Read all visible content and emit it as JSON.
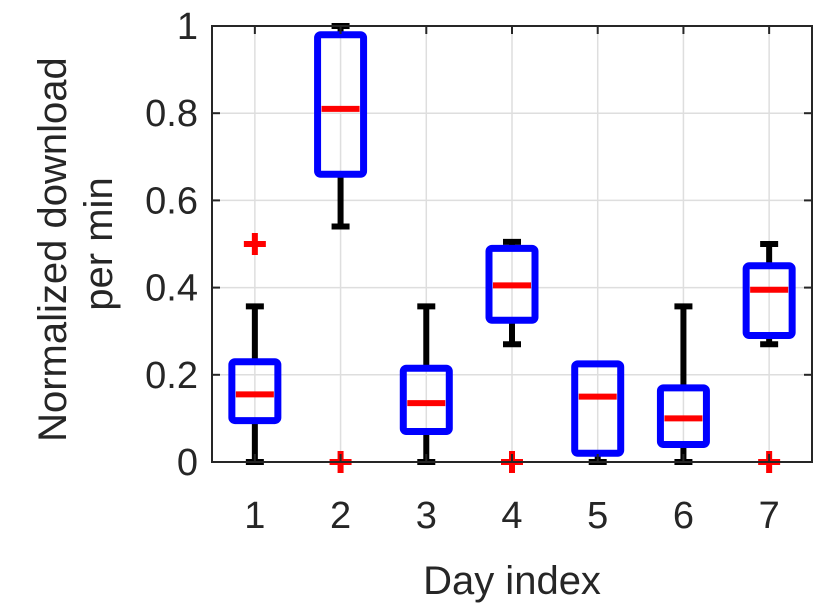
{
  "chart_data": {
    "type": "box",
    "xlabel": "Day index",
    "ylabel_lines": [
      "Normalized download",
      "per min"
    ],
    "categories": [
      "1",
      "2",
      "3",
      "4",
      "5",
      "6",
      "7"
    ],
    "ylim": [
      0,
      1
    ],
    "yticks": [
      0,
      0.2,
      0.4,
      0.6,
      0.8,
      1
    ],
    "ytick_labels": [
      "0",
      "0.2",
      "0.4",
      "0.6",
      "0.8",
      "1"
    ],
    "grid": true,
    "colors": {
      "box": "#0000ff",
      "median": "#ff0000",
      "whisker": "#000000",
      "outlier": "#ff0000"
    },
    "boxes": [
      {
        "category": "1",
        "whisker_low": 0.0,
        "q1": 0.095,
        "median": 0.155,
        "q3": 0.23,
        "whisker_high": 0.357,
        "outliers": [
          0.5
        ]
      },
      {
        "category": "2",
        "whisker_low": 0.54,
        "q1": 0.66,
        "median": 0.81,
        "q3": 0.98,
        "whisker_high": 1.0,
        "outliers": [
          0.0
        ]
      },
      {
        "category": "3",
        "whisker_low": 0.0,
        "q1": 0.07,
        "median": 0.135,
        "q3": 0.215,
        "whisker_high": 0.357,
        "outliers": []
      },
      {
        "category": "4",
        "whisker_low": 0.27,
        "q1": 0.325,
        "median": 0.405,
        "q3": 0.49,
        "whisker_high": 0.505,
        "outliers": [
          0.0
        ]
      },
      {
        "category": "5",
        "whisker_low": 0.0,
        "q1": 0.02,
        "median": 0.15,
        "q3": 0.225,
        "whisker_high": 0.225,
        "outliers": []
      },
      {
        "category": "6",
        "whisker_low": 0.0,
        "q1": 0.04,
        "median": 0.1,
        "q3": 0.17,
        "whisker_high": 0.357,
        "outliers": []
      },
      {
        "category": "7",
        "whisker_low": 0.27,
        "q1": 0.29,
        "median": 0.395,
        "q3": 0.45,
        "whisker_high": 0.5,
        "outliers": [
          0.0
        ]
      }
    ]
  }
}
